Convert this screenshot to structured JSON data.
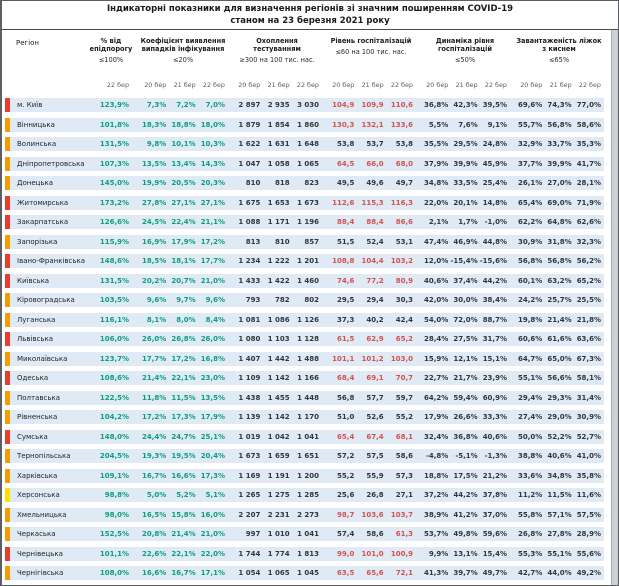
{
  "title": {
    "line1": "Індикаторні показники для визначення регіонів зі значним поширенням COVID-19",
    "line2": "станом на 23 березня 2021 року"
  },
  "header": {
    "region_label": "Регіон",
    "cols": [
      {
        "title": "% від епідпорогу",
        "threshold": "≤100%",
        "dates": [
          "22 бер"
        ]
      },
      {
        "title": "Коефіцієнт виявлення випадків інфікування",
        "threshold": "≤20%",
        "dates": [
          "20 бер",
          "21 бер",
          "22 бер"
        ]
      },
      {
        "title": "Охоплення тестуванням",
        "threshold": "≥300 на 100 тис. нас.",
        "dates": [
          "20 бер",
          "21 бер",
          "22 бер"
        ]
      },
      {
        "title": "Рівень госпіталізацій",
        "threshold": "≤60 на 100 тис. нас.",
        "dates": [
          "20 бер",
          "21 бер",
          "22 бер"
        ]
      },
      {
        "title": "Динаміка рівня госпіталізацій",
        "threshold": "≤50%",
        "dates": [
          "20 бер",
          "21 бер",
          "22 бер"
        ]
      },
      {
        "title": "Завантаженість ліжок з киснем",
        "threshold": "≤65%",
        "dates": [
          "20 бер",
          "21 бер",
          "22 бер"
        ]
      }
    ]
  },
  "colors": {
    "value_green": "#0a9f7d",
    "value_red": "#d35250",
    "value_dark": "#30363d",
    "marker_red": "#e93c2f",
    "marker_orange": "#f59c00",
    "marker_yellow": "#ffdf00",
    "row_background": "#dfeaf4",
    "hosp_red_threshold": 60
  },
  "rows": [
    {
      "region": "м. Київ",
      "marker": "red",
      "pct": "123,9%",
      "coef": [
        "7,3%",
        "7,2%",
        "7,0%"
      ],
      "test": [
        "2 897",
        "2 935",
        "3 030"
      ],
      "hosp": [
        "104,9",
        "109,9",
        "110,6"
      ],
      "dyn": [
        "36,8%",
        "42,3%",
        "39,5%"
      ],
      "oxy": [
        "69,6%",
        "74,3%",
        "77,0%"
      ]
    },
    {
      "region": "Вінницька",
      "marker": "orange",
      "pct": "101,8%",
      "coef": [
        "18,3%",
        "18,8%",
        "18,0%"
      ],
      "test": [
        "1 879",
        "1 854",
        "1 860"
      ],
      "hosp": [
        "130,3",
        "132,1",
        "133,6"
      ],
      "dyn": [
        "5,5%",
        "7,6%",
        "9,1%"
      ],
      "oxy": [
        "55,7%",
        "56,8%",
        "58,6%"
      ]
    },
    {
      "region": "Волинська",
      "marker": "orange",
      "pct": "131,5%",
      "coef": [
        "9,8%",
        "10,1%",
        "10,3%"
      ],
      "test": [
        "1 622",
        "1 631",
        "1 648"
      ],
      "hosp": [
        "53,8",
        "53,7",
        "53,8"
      ],
      "dyn": [
        "35,5%",
        "29,5%",
        "24,8%"
      ],
      "oxy": [
        "32,9%",
        "33,7%",
        "35,3%"
      ]
    },
    {
      "region": "Дніпропетровська",
      "marker": "orange",
      "pct": "107,3%",
      "coef": [
        "13,5%",
        "13,4%",
        "14,3%"
      ],
      "test": [
        "1 047",
        "1 058",
        "1 065"
      ],
      "hosp": [
        "64,5",
        "66,0",
        "68,0"
      ],
      "dyn": [
        "37,9%",
        "39,9%",
        "45,9%"
      ],
      "oxy": [
        "37,7%",
        "39,9%",
        "41,7%"
      ]
    },
    {
      "region": "Донецька",
      "marker": "orange",
      "pct": "145,0%",
      "coef": [
        "19,9%",
        "20,5%",
        "20,3%"
      ],
      "test": [
        "810",
        "818",
        "823"
      ],
      "hosp": [
        "49,5",
        "49,6",
        "49,7"
      ],
      "dyn": [
        "34,8%",
        "33,5%",
        "25,4%"
      ],
      "oxy": [
        "26,1%",
        "27,0%",
        "28,1%"
      ]
    },
    {
      "region": "Житомирська",
      "marker": "red",
      "pct": "173,2%",
      "coef": [
        "27,8%",
        "27,1%",
        "27,1%"
      ],
      "test": [
        "1 675",
        "1 653",
        "1 673"
      ],
      "hosp": [
        "112,6",
        "115,3",
        "116,3"
      ],
      "dyn": [
        "22,0%",
        "20,1%",
        "14,8%"
      ],
      "oxy": [
        "65,4%",
        "69,0%",
        "71,9%"
      ]
    },
    {
      "region": "Закарпатська",
      "marker": "red",
      "pct": "126,6%",
      "coef": [
        "24,5%",
        "22,4%",
        "21,1%"
      ],
      "test": [
        "1 088",
        "1 171",
        "1 196"
      ],
      "hosp": [
        "88,4",
        "88,4",
        "86,6"
      ],
      "dyn": [
        "2,1%",
        "1,7%",
        "-1,0%"
      ],
      "oxy": [
        "62,2%",
        "64,8%",
        "62,6%"
      ]
    },
    {
      "region": "Запорізька",
      "marker": "orange",
      "pct": "115,9%",
      "coef": [
        "16,9%",
        "17,9%",
        "17,2%"
      ],
      "test": [
        "813",
        "810",
        "857"
      ],
      "hosp": [
        "51,5",
        "52,4",
        "53,1"
      ],
      "dyn": [
        "47,4%",
        "46,9%",
        "44,8%"
      ],
      "oxy": [
        "30,9%",
        "31,8%",
        "32,3%"
      ]
    },
    {
      "region": "Івано-Франківська",
      "marker": "red",
      "pct": "148,6%",
      "coef": [
        "18,5%",
        "18,1%",
        "17,7%"
      ],
      "test": [
        "1 234",
        "1 222",
        "1 201"
      ],
      "hosp": [
        "108,8",
        "104,4",
        "103,2"
      ],
      "dyn": [
        "12,0%",
        "-15,4%",
        "-15,6%"
      ],
      "oxy": [
        "56,8%",
        "56,8%",
        "56,2%"
      ]
    },
    {
      "region": "Київська",
      "marker": "red",
      "pct": "131,5%",
      "coef": [
        "20,2%",
        "20,7%",
        "21,0%"
      ],
      "test": [
        "1 433",
        "1 422",
        "1 460"
      ],
      "hosp": [
        "74,6",
        "77,2",
        "80,9"
      ],
      "dyn": [
        "40,6%",
        "37,4%",
        "44,2%"
      ],
      "oxy": [
        "60,1%",
        "63,2%",
        "65,2%"
      ]
    },
    {
      "region": "Кіровоградська",
      "marker": "orange",
      "pct": "103,5%",
      "coef": [
        "9,6%",
        "9,7%",
        "9,6%"
      ],
      "test": [
        "793",
        "782",
        "802"
      ],
      "hosp": [
        "29,5",
        "29,4",
        "30,3"
      ],
      "dyn": [
        "42,0%",
        "30,0%",
        "38,4%"
      ],
      "oxy": [
        "24,2%",
        "25,7%",
        "25,5%"
      ]
    },
    {
      "region": "Луганська",
      "marker": "orange",
      "pct": "116,1%",
      "coef": [
        "8,1%",
        "8,0%",
        "8,4%"
      ],
      "test": [
        "1 081",
        "1 086",
        "1 126"
      ],
      "hosp": [
        "37,3",
        "40,2",
        "42,4"
      ],
      "dyn": [
        "54,0%",
        "72,0%",
        "88,7%"
      ],
      "oxy": [
        "19,8%",
        "21,4%",
        "21,8%"
      ]
    },
    {
      "region": "Львівська",
      "marker": "red",
      "pct": "106,0%",
      "coef": [
        "26,0%",
        "26,8%",
        "26,0%"
      ],
      "test": [
        "1 080",
        "1 103",
        "1 128"
      ],
      "hosp": [
        "61,5",
        "62,9",
        "65,2"
      ],
      "dyn": [
        "28,4%",
        "27,5%",
        "31,7%"
      ],
      "oxy": [
        "60,6%",
        "61,6%",
        "63,6%"
      ]
    },
    {
      "region": "Миколаївська",
      "marker": "orange",
      "pct": "123,7%",
      "coef": [
        "17,7%",
        "17,2%",
        "16,8%"
      ],
      "test": [
        "1 407",
        "1 442",
        "1 488"
      ],
      "hosp": [
        "101,1",
        "101,2",
        "103,0"
      ],
      "dyn": [
        "15,9%",
        "12,1%",
        "15,1%"
      ],
      "oxy": [
        "64,7%",
        "65,0%",
        "67,3%"
      ]
    },
    {
      "region": "Одеська",
      "marker": "red",
      "pct": "108,6%",
      "coef": [
        "21,4%",
        "22,1%",
        "23,0%"
      ],
      "test": [
        "1 109",
        "1 142",
        "1 166"
      ],
      "hosp": [
        "68,4",
        "69,1",
        "70,7"
      ],
      "dyn": [
        "22,7%",
        "21,7%",
        "23,9%"
      ],
      "oxy": [
        "55,1%",
        "56,6%",
        "58,1%"
      ]
    },
    {
      "region": "Полтавська",
      "marker": "orange",
      "pct": "122,5%",
      "coef": [
        "11,8%",
        "11,5%",
        "13,5%"
      ],
      "test": [
        "1 438",
        "1 455",
        "1 448"
      ],
      "hosp": [
        "56,8",
        "57,7",
        "59,7"
      ],
      "dyn": [
        "64,2%",
        "59,4%",
        "60,9%"
      ],
      "oxy": [
        "29,4%",
        "29,3%",
        "31,4%"
      ]
    },
    {
      "region": "Рівненська",
      "marker": "orange",
      "pct": "104,2%",
      "coef": [
        "17,2%",
        "17,3%",
        "17,9%"
      ],
      "test": [
        "1 139",
        "1 142",
        "1 170"
      ],
      "hosp": [
        "51,0",
        "52,6",
        "55,2"
      ],
      "dyn": [
        "17,9%",
        "26,6%",
        "33,3%"
      ],
      "oxy": [
        "27,4%",
        "29,0%",
        "30,9%"
      ]
    },
    {
      "region": "Сумська",
      "marker": "red",
      "pct": "148,0%",
      "coef": [
        "24,4%",
        "24,7%",
        "25,1%"
      ],
      "test": [
        "1 019",
        "1 042",
        "1 041"
      ],
      "hosp": [
        "65,4",
        "67,4",
        "68,1"
      ],
      "dyn": [
        "32,4%",
        "36,8%",
        "40,6%"
      ],
      "oxy": [
        "50,0%",
        "52,2%",
        "52,7%"
      ]
    },
    {
      "region": "Тернопільська",
      "marker": "orange",
      "pct": "204,5%",
      "coef": [
        "19,3%",
        "19,5%",
        "20,4%"
      ],
      "test": [
        "1 673",
        "1 659",
        "1 651"
      ],
      "hosp": [
        "57,2",
        "57,5",
        "58,6"
      ],
      "dyn": [
        "-4,8%",
        "-5,1%",
        "-1,3%"
      ],
      "oxy": [
        "38,8%",
        "40,6%",
        "41,0%"
      ]
    },
    {
      "region": "Харківська",
      "marker": "orange",
      "pct": "109,1%",
      "coef": [
        "16,7%",
        "16,6%",
        "17,3%"
      ],
      "test": [
        "1 169",
        "1 191",
        "1 200"
      ],
      "hosp": [
        "55,2",
        "55,9",
        "57,3"
      ],
      "dyn": [
        "18,8%",
        "17,5%",
        "21,2%"
      ],
      "oxy": [
        "33,6%",
        "34,8%",
        "35,8%"
      ]
    },
    {
      "region": "Херсонська",
      "marker": "yellow",
      "pct": "98,8%",
      "coef": [
        "5,0%",
        "5,2%",
        "5,1%"
      ],
      "test": [
        "1 265",
        "1 275",
        "1 285"
      ],
      "hosp": [
        "25,6",
        "26,8",
        "27,1"
      ],
      "dyn": [
        "37,2%",
        "44,2%",
        "37,8%"
      ],
      "oxy": [
        "11,2%",
        "11,5%",
        "11,6%"
      ]
    },
    {
      "region": "Хмельницька",
      "marker": "orange",
      "pct": "98,0%",
      "coef": [
        "16,5%",
        "15,8%",
        "16,0%"
      ],
      "test": [
        "2 207",
        "2 231",
        "2 273"
      ],
      "hosp": [
        "98,7",
        "103,6",
        "103,7"
      ],
      "dyn": [
        "38,9%",
        "41,2%",
        "37,0%"
      ],
      "oxy": [
        "55,8%",
        "57,1%",
        "57,5%"
      ]
    },
    {
      "region": "Черкаська",
      "marker": "orange",
      "pct": "152,5%",
      "coef": [
        "20,8%",
        "21,4%",
        "21,0%"
      ],
      "test": [
        "997",
        "1 010",
        "1 041"
      ],
      "hosp": [
        "57,4",
        "58,6",
        "61,3"
      ],
      "dyn": [
        "53,7%",
        "49,8%",
        "59,6%"
      ],
      "oxy": [
        "26,8%",
        "27,8%",
        "28,9%"
      ]
    },
    {
      "region": "Чернівецька",
      "marker": "red",
      "pct": "101,1%",
      "coef": [
        "22,6%",
        "22,1%",
        "22,0%"
      ],
      "test": [
        "1 744",
        "1 774",
        "1 813"
      ],
      "hosp": [
        "99,0",
        "101,0",
        "100,9"
      ],
      "dyn": [
        "9,9%",
        "13,1%",
        "15,4%"
      ],
      "oxy": [
        "55,3%",
        "55,1%",
        "55,6%"
      ]
    },
    {
      "region": "Чернігівська",
      "marker": "orange",
      "pct": "108,0%",
      "coef": [
        "16,6%",
        "16,7%",
        "17,1%"
      ],
      "test": [
        "1 054",
        "1 065",
        "1 045"
      ],
      "hosp": [
        "63,5",
        "65,6",
        "72,1"
      ],
      "dyn": [
        "41,3%",
        "39,7%",
        "49,7%"
      ],
      "oxy": [
        "42,7%",
        "44,0%",
        "49,2%"
      ]
    }
  ]
}
